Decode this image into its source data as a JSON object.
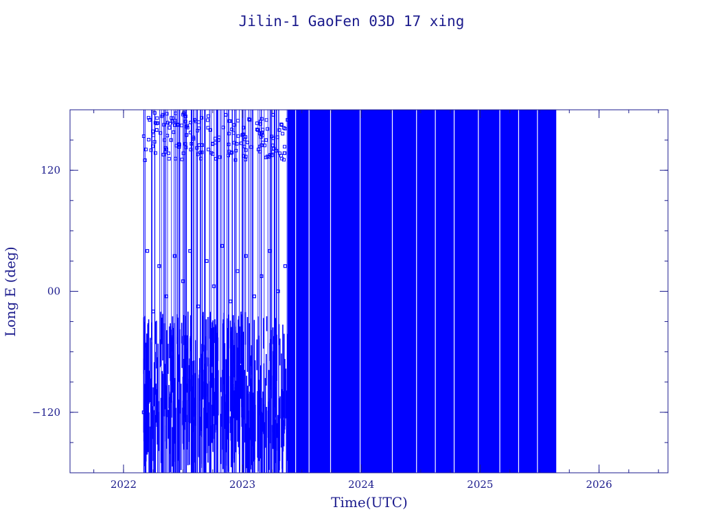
{
  "chart_data": {
    "type": "scatter",
    "title": "Jilin-1 GaoFen 03D 17 xing",
    "xlabel": "Time(UTC)",
    "ylabel": "Long E (deg)",
    "xlim": [
      2021.55,
      2026.58
    ],
    "ylim": [
      -180,
      180
    ],
    "x_ticks": [
      {
        "value": 2022,
        "label": "2022"
      },
      {
        "value": 2023,
        "label": "2023"
      },
      {
        "value": 2024,
        "label": "2024"
      },
      {
        "value": 2025,
        "label": "2025"
      },
      {
        "value": 2026,
        "label": "2026"
      }
    ],
    "y_ticks": [
      {
        "value": -120,
        "label": "−120"
      },
      {
        "value": 0,
        "label": "00"
      },
      {
        "value": 120,
        "label": "120"
      }
    ],
    "y_minor_step": 30,
    "x_minor_step": 0.25,
    "grid": false,
    "legend": "none",
    "color": "#0000ff",
    "frame_color": "#1a1a8c",
    "data_start": 2022.17,
    "data_end": 2025.64,
    "segments": [
      {
        "x_start": 2022.17,
        "x_end": 2023.38,
        "density": "sparse",
        "lon_range": [
          -180,
          180
        ],
        "lon_cluster": [
          -150,
          -20
        ]
      },
      {
        "x_start": 2023.38,
        "x_end": 2025.64,
        "density": "dense",
        "lon_range": [
          -180,
          180
        ],
        "lon_cluster": [
          -180,
          180
        ]
      }
    ],
    "series": [
      {
        "x": [
          2022.17,
          2022.18,
          2022.2,
          2022.22,
          2022.25,
          2022.28,
          2022.3,
          2022.33,
          2022.36,
          2022.4,
          2022.43,
          2022.46,
          2022.5,
          2022.53,
          2022.56,
          2022.6,
          2022.63,
          2022.66,
          2022.7,
          2022.73,
          2022.76,
          2022.8,
          2022.83,
          2022.86,
          2022.9,
          2022.93,
          2022.96,
          2023.0,
          2023.03,
          2023.06,
          2023.1,
          2023.13,
          2023.16,
          2023.2,
          2023.23,
          2023.26,
          2023.3,
          2023.33,
          2023.36,
          2023.38
        ],
        "y": [
          -120,
          130,
          40,
          170,
          -20,
          160,
          25,
          175,
          -5,
          150,
          35,
          165,
          10,
          155,
          40,
          170,
          -15,
          145,
          30,
          160,
          5,
          150,
          45,
          175,
          -10,
          165,
          20,
          155,
          35,
          170,
          -5,
          160,
          15,
          150,
          40,
          175,
          0,
          165,
          25,
          170
        ]
      }
    ]
  }
}
